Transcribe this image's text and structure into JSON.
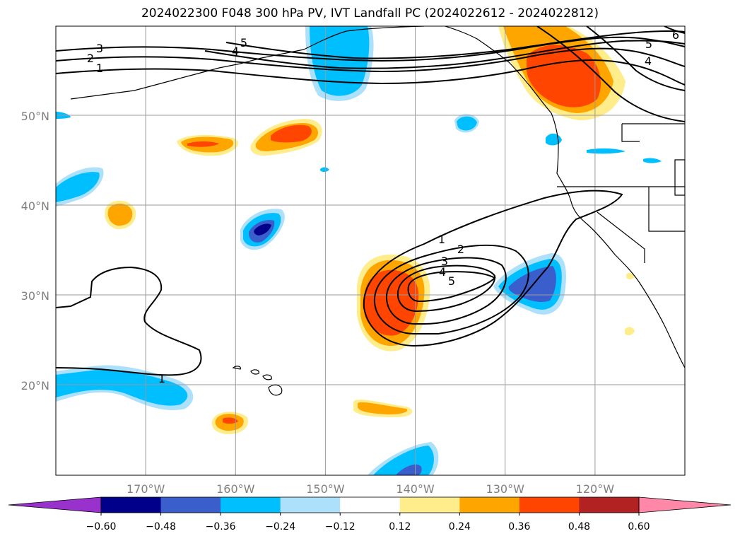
{
  "chart_data": {
    "type": "contour",
    "title": "2024022300 F048 300 hPa PV, IVT Landfall PC (2024022612 - 2024022812)",
    "map": {
      "lon_range": [
        -180,
        -110
      ],
      "lat_range": [
        10,
        60
      ],
      "x_ticks": [
        -170,
        -160,
        -150,
        -140,
        -130,
        -120
      ],
      "x_tick_labels": [
        "170°W",
        "160°W",
        "150°W",
        "140°W",
        "130°W",
        "120°W"
      ],
      "y_ticks": [
        20,
        30,
        40,
        50
      ],
      "y_tick_labels": [
        "20°N",
        "30°N",
        "40°N",
        "50°N"
      ],
      "grid": true,
      "coastlines": true
    },
    "colorbar": {
      "orientation": "horizontal",
      "extend": "both",
      "levels": [
        -0.6,
        -0.48,
        -0.36,
        -0.24,
        -0.12,
        0.12,
        0.24,
        0.36,
        0.48,
        0.6
      ],
      "tick_labels": [
        "−0.60",
        "−0.48",
        "−0.36",
        "−0.24",
        "−0.12",
        "0.12",
        "0.24",
        "0.36",
        "0.48",
        "0.60"
      ],
      "colors": [
        "#9932CC",
        "#00008B",
        "#3A5FCD",
        "#00BFFF",
        "#ADE0FA",
        "#FFFFFF",
        "#FFEC8B",
        "#FFA500",
        "#FF4500",
        "#B22222",
        "#FF88A8"
      ]
    },
    "filled_anomalies": [
      {
        "value": 0.36,
        "center": [
          -142.6,
          30.0
        ]
      },
      {
        "value": 0.36,
        "center": [
          -124.4,
          55.0
        ]
      },
      {
        "value": 0.36,
        "center": [
          -154.2,
          48.5
        ]
      },
      {
        "value": 0.36,
        "center": [
          -164.4,
          47.0
        ]
      },
      {
        "value": 0.24,
        "center": [
          -172.2,
          39.2
        ]
      },
      {
        "value": 0.36,
        "center": [
          -161.8,
          16.0
        ]
      },
      {
        "value": 0.24,
        "center": [
          -142.1,
          17.5
        ]
      },
      {
        "value": -0.48,
        "center": [
          -126.5,
          31.5
        ]
      },
      {
        "value": -0.48,
        "center": [
          -156.7,
          37.3
        ]
      },
      {
        "value": -0.24,
        "center": [
          -149.0,
          56.0
        ]
      },
      {
        "value": -0.24,
        "center": [
          -169.2,
          19.5
        ]
      },
      {
        "value": -0.48,
        "center": [
          -141.7,
          10.5
        ]
      },
      {
        "value": -0.24,
        "center": [
          -177.5,
          41.5
        ]
      }
    ],
    "contour_labels": [
      "1",
      "2",
      "3",
      "4",
      "5",
      "1",
      "2",
      "3",
      "4",
      "5",
      "6",
      "1"
    ]
  }
}
